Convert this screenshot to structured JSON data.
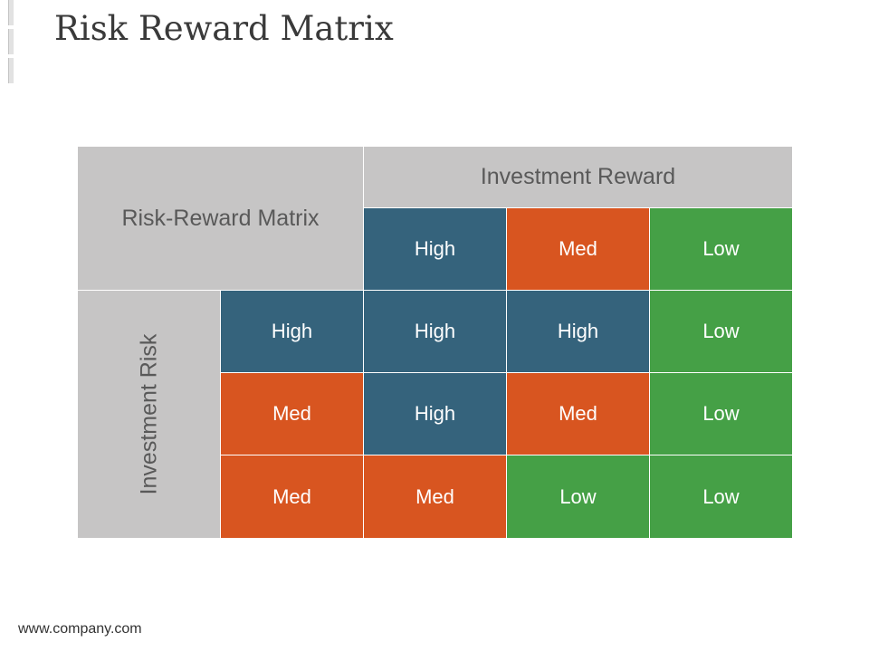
{
  "slide": {
    "title": "Risk Reward Matrix",
    "footer": "www.company.com"
  },
  "matrix": {
    "corner_label": "Risk-Reward Matrix",
    "column_header": "Investment Reward",
    "row_header": "Investment Risk",
    "column_labels": [
      "High",
      "Med",
      "Low"
    ],
    "rows": [
      {
        "label": "High",
        "cells": [
          "High",
          "High",
          "Low"
        ]
      },
      {
        "label": "Med",
        "cells": [
          "High",
          "Med",
          "Low"
        ]
      },
      {
        "label": "Med",
        "cells": [
          "Med",
          "Low",
          "Low"
        ]
      }
    ]
  },
  "colors": {
    "high": "#35637c",
    "med": "#d85520",
    "low": "#45a046",
    "header_gray": "#c6c5c5"
  }
}
